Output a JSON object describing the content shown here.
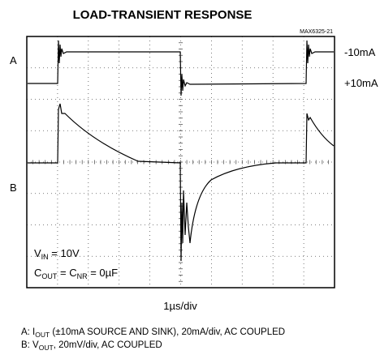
{
  "chart_data": {
    "type": "scope",
    "title": "LOAD-TRANSIENT RESPONSE",
    "figure_id": "MAX6325-21",
    "channel_labels": [
      "A",
      "B"
    ],
    "level_labels": [
      "-10mA",
      "+10mA"
    ],
    "annotations": [
      [
        "V",
        "IN",
        " = 10V"
      ],
      [
        "C",
        "OUT",
        " = C",
        "NR",
        " = 0µF"
      ]
    ],
    "x_label": "1µs/div",
    "notes": [
      [
        "A: I",
        "OUT",
        " (±10mA SOURCE AND SINK), 20mA/div, AC COUPLED"
      ],
      [
        "B: V",
        "OUT",
        ", 20mV/div, AC COUPLED"
      ]
    ]
  }
}
